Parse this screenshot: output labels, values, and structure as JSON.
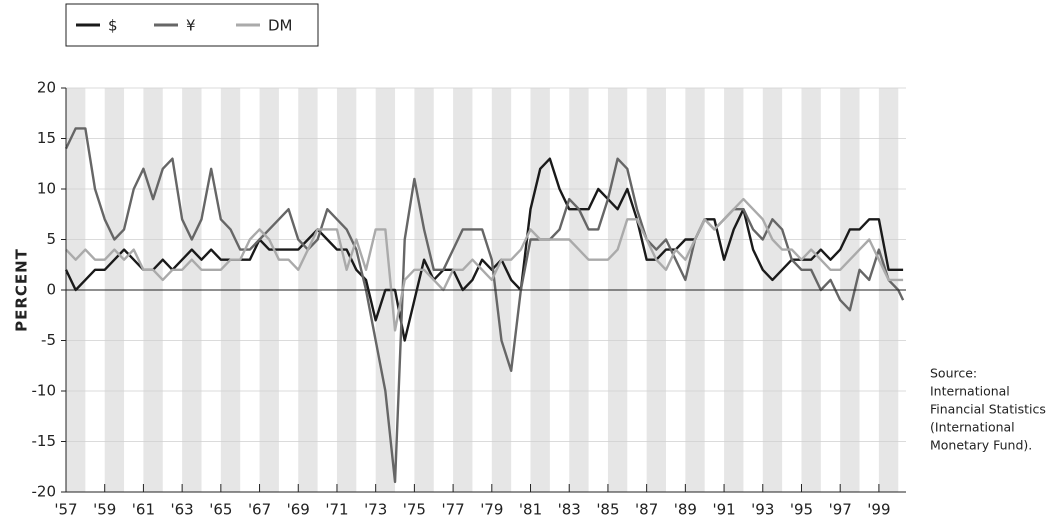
{
  "chart_data": {
    "type": "line",
    "y_label": "PERCENT",
    "annotation": [
      "Source:",
      "International",
      "Financial Statistics",
      "(International",
      "Monetary Fund)."
    ],
    "x": [
      1957,
      1957.5,
      1958,
      1958.5,
      1959,
      1959.5,
      1960,
      1960.5,
      1961,
      1961.5,
      1962,
      1962.5,
      1963,
      1963.5,
      1964,
      1964.5,
      1965,
      1965.5,
      1966,
      1966.5,
      1967,
      1967.5,
      1968,
      1968.5,
      1969,
      1969.5,
      1970,
      1970.5,
      1971,
      1971.5,
      1972,
      1972.5,
      1973,
      1973.5,
      1974,
      1974.5,
      1975,
      1975.5,
      1976,
      1976.5,
      1977,
      1977.5,
      1978,
      1978.5,
      1979,
      1979.5,
      1980,
      1980.5,
      1981,
      1981.5,
      1982,
      1982.5,
      1983,
      1983.5,
      1984,
      1984.5,
      1985,
      1985.5,
      1986,
      1986.5,
      1987,
      1987.5,
      1988,
      1988.5,
      1989,
      1989.5,
      1990,
      1990.5,
      1991,
      1991.5,
      1992,
      1992.5,
      1993,
      1993.5,
      1994,
      1994.5,
      1995,
      1995.5,
      1996,
      1996.5,
      1997,
      1997.5,
      1998,
      1998.5,
      1999,
      1999.5,
      2000,
      2000.25
    ],
    "series": [
      {
        "name": "$",
        "color": "#1a1a1a",
        "values": [
          2,
          0,
          1,
          2,
          2,
          3,
          4,
          3,
          2,
          2,
          3,
          2,
          3,
          4,
          3,
          4,
          3,
          3,
          3,
          3,
          5,
          4,
          4,
          4,
          4,
          5,
          6,
          5,
          4,
          4,
          2,
          1,
          -3,
          0,
          0,
          -5,
          -1,
          3,
          1,
          2,
          2,
          0,
          1,
          3,
          2,
          3,
          1,
          0,
          8,
          12,
          13,
          10,
          8,
          8,
          8,
          10,
          9,
          8,
          10,
          7,
          3,
          3,
          4,
          4,
          5,
          5,
          7,
          7,
          3,
          6,
          8,
          4,
          2,
          1,
          2,
          3,
          3,
          3,
          4,
          3,
          4,
          6,
          6,
          7,
          7,
          2,
          2,
          2
        ]
      },
      {
        "name": "¥",
        "color": "#666666",
        "values": [
          14,
          16,
          16,
          10,
          7,
          5,
          6,
          10,
          12,
          9,
          12,
          13,
          7,
          5,
          7,
          12,
          7,
          6,
          4,
          4,
          5,
          6,
          7,
          8,
          5,
          4,
          5,
          8,
          7,
          6,
          4,
          0,
          -5,
          -10,
          -19,
          5,
          11,
          6,
          2,
          2,
          4,
          6,
          6,
          6,
          3,
          -5,
          -8,
          0,
          5,
          5,
          5,
          6,
          9,
          8,
          6,
          6,
          9,
          13,
          12,
          8,
          5,
          4,
          5,
          3,
          1,
          5,
          7,
          6,
          7,
          8,
          8,
          6,
          5,
          7,
          6,
          3,
          2,
          2,
          0,
          1,
          -1,
          -2,
          2,
          1,
          4,
          1,
          0,
          -1
        ]
      },
      {
        "name": "DM",
        "color": "#aaaaaa",
        "values": [
          4,
          3,
          4,
          3,
          3,
          4,
          3,
          4,
          2,
          2,
          1,
          2,
          2,
          3,
          2,
          2,
          2,
          3,
          3,
          5,
          6,
          5,
          3,
          3,
          2,
          4,
          6,
          6,
          6,
          2,
          5,
          2,
          6,
          6,
          -4,
          1,
          2,
          2,
          1,
          0,
          2,
          2,
          3,
          2,
          1,
          3,
          3,
          4,
          6,
          5,
          5,
          5,
          5,
          4,
          3,
          3,
          3,
          4,
          7,
          7,
          5,
          3,
          2,
          4,
          3,
          5,
          7,
          6,
          7,
          8,
          9,
          8,
          7,
          5,
          4,
          4,
          3,
          4,
          3,
          2,
          2,
          3,
          4,
          5,
          3,
          1,
          1,
          1
        ]
      }
    ],
    "xlim": [
      1957,
      2000.4
    ],
    "xticks": [
      {
        "value": 1957,
        "label": "'57"
      },
      {
        "value": 1959,
        "label": "'59"
      },
      {
        "value": 1961,
        "label": "'61"
      },
      {
        "value": 1963,
        "label": "'63"
      },
      {
        "value": 1965,
        "label": "'65"
      },
      {
        "value": 1967,
        "label": "'67"
      },
      {
        "value": 1969,
        "label": "'69"
      },
      {
        "value": 1971,
        "label": "'71"
      },
      {
        "value": 1973,
        "label": "'73"
      },
      {
        "value": 1975,
        "label": "'75"
      },
      {
        "value": 1977,
        "label": "'77"
      },
      {
        "value": 1979,
        "label": "'79"
      },
      {
        "value": 1981,
        "label": "'81"
      },
      {
        "value": 1983,
        "label": "'83"
      },
      {
        "value": 1985,
        "label": "'85"
      },
      {
        "value": 1987,
        "label": "'87"
      },
      {
        "value": 1989,
        "label": "'89"
      },
      {
        "value": 1991,
        "label": "'91"
      },
      {
        "value": 1993,
        "label": "'93"
      },
      {
        "value": 1995,
        "label": "'95"
      },
      {
        "value": 1997,
        "label": "'97"
      },
      {
        "value": 1999,
        "label": "'99"
      }
    ],
    "ylim": [
      -20,
      20
    ],
    "yticks": [
      -20,
      -15,
      -10,
      -5,
      0,
      5,
      10,
      15,
      20
    ],
    "grid": true,
    "legend": "top-left"
  }
}
